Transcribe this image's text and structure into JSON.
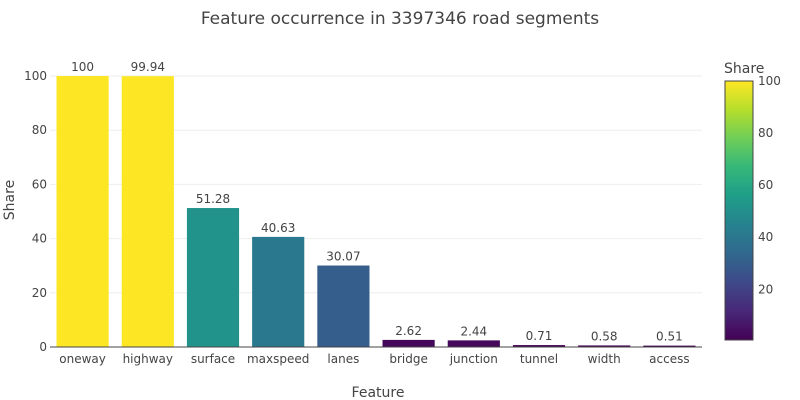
{
  "chart_data": {
    "type": "bar",
    "title": "Feature occurrence in 3397346 road segments",
    "xlabel": "Feature",
    "ylabel": "Share",
    "categories": [
      "oneway",
      "highway",
      "surface",
      "maxspeed",
      "lanes",
      "bridge",
      "junction",
      "tunnel",
      "width",
      "access"
    ],
    "values": [
      100,
      99.94,
      51.28,
      40.63,
      30.07,
      2.62,
      2.44,
      0.71,
      0.58,
      0.51
    ],
    "data_labels": [
      "100",
      "99.94",
      "51.28",
      "40.63",
      "30.07",
      "2.62",
      "2.44",
      "0.71",
      "0.58",
      "0.51"
    ],
    "ylim": [
      0,
      104
    ],
    "y_ticks": [
      0,
      20,
      40,
      60,
      80,
      100
    ],
    "grid": true,
    "colorbar": {
      "title": "Share",
      "range": [
        0.51,
        100
      ],
      "ticks": [
        20,
        40,
        60,
        80,
        100
      ],
      "colorscale": "viridis"
    }
  }
}
